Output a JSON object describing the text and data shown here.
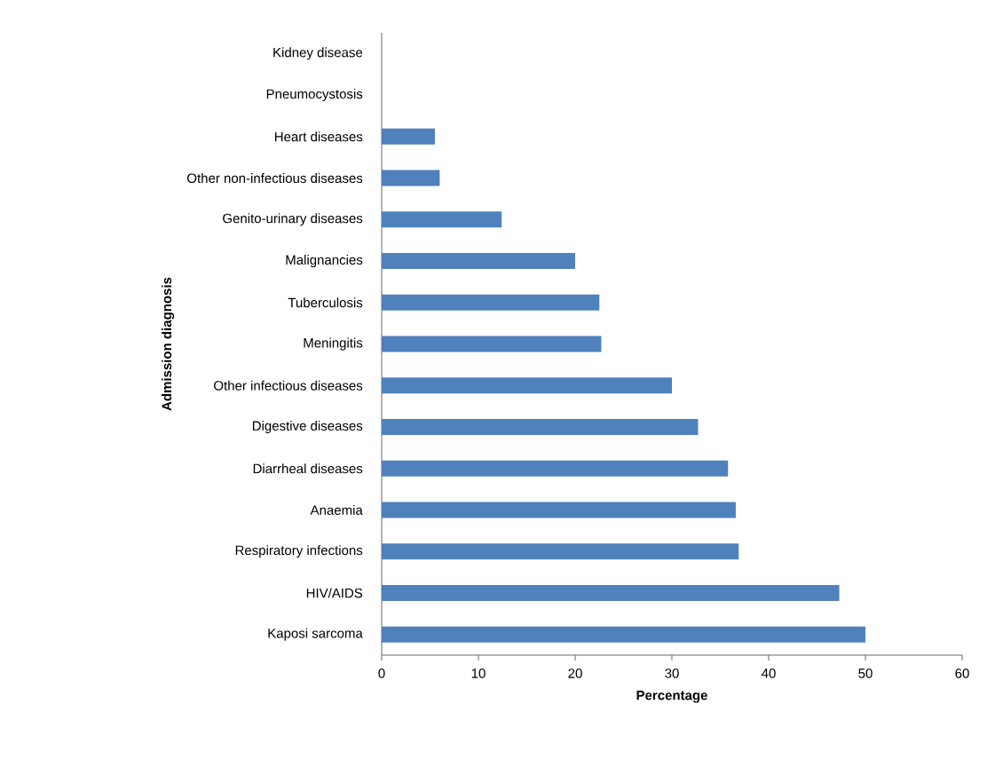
{
  "chart_data": {
    "type": "bar",
    "orientation": "horizontal",
    "categories": [
      "Kidney disease",
      "Pneumocystosis",
      "Heart diseases",
      "Other non-infectious diseases",
      "Genito-urinary diseases",
      "Malignancies",
      "Tuberculosis",
      "Meningitis",
      "Other infectious diseases",
      "Digestive diseases",
      "Diarrheal diseases",
      "Anaemia",
      "Respiratory infections",
      "HIV/AIDS",
      "Kaposi sarcoma"
    ],
    "values": [
      0,
      0,
      5.5,
      6.0,
      12.4,
      20.0,
      22.5,
      22.7,
      30.0,
      32.7,
      35.8,
      36.6,
      36.9,
      47.3,
      50.0
    ],
    "color": "#4f81bd",
    "xlabel": "Percentage",
    "ylabel": "Admission diagnosis",
    "xlim": [
      0,
      60
    ],
    "xticks": [
      0,
      10,
      20,
      30,
      40,
      50,
      60
    ]
  }
}
